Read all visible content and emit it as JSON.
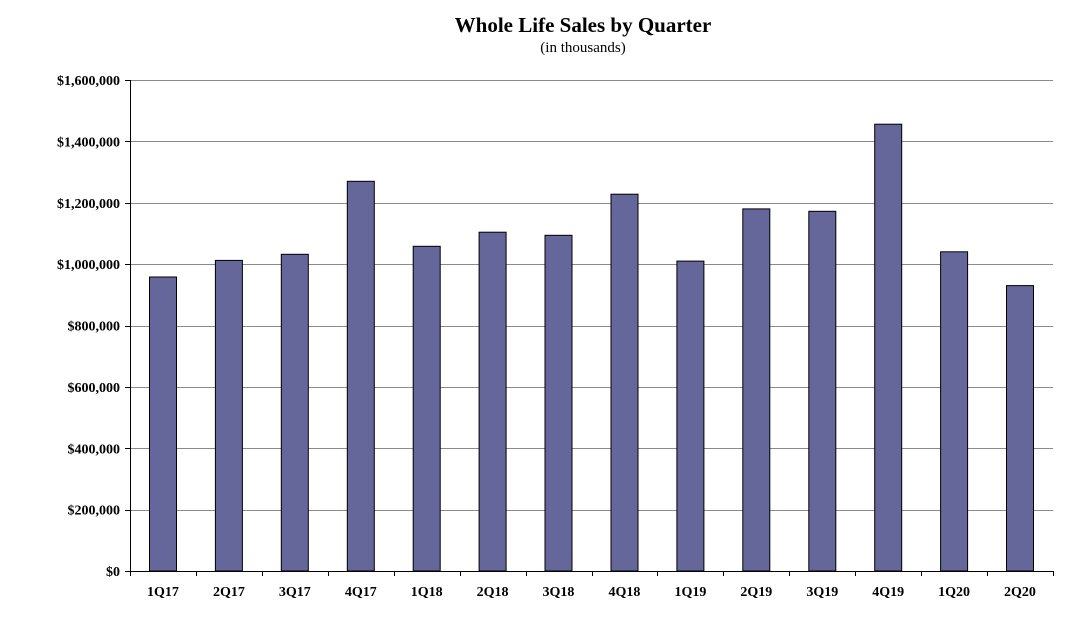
{
  "chart_data": {
    "type": "bar",
    "title": "Whole Life Sales by Quarter",
    "subtitle": "(in thousands)",
    "xlabel": "",
    "ylabel": "",
    "categories": [
      "1Q17",
      "2Q17",
      "3Q17",
      "4Q17",
      "1Q18",
      "2Q18",
      "3Q18",
      "4Q18",
      "1Q19",
      "2Q19",
      "3Q19",
      "4Q19",
      "1Q20",
      "2Q20"
    ],
    "values": [
      958000,
      1012000,
      1032000,
      1270000,
      1058000,
      1104000,
      1094000,
      1228000,
      1010000,
      1180000,
      1172000,
      1456000,
      1040000,
      930000
    ],
    "ylim": [
      0,
      1600000
    ],
    "yticks": [
      0,
      200000,
      400000,
      600000,
      800000,
      1000000,
      1200000,
      1400000,
      1600000
    ],
    "ytick_labels": [
      "$0",
      "$200,000",
      "$400,000",
      "$600,000",
      "$800,000",
      "$1,000,000",
      "$1,200,000",
      "$1,400,000",
      "$1,600,000"
    ],
    "grid": true,
    "legend": "none",
    "colors": {
      "bar": "#65669a",
      "bar_edge": "#000000",
      "grid": "#8a8a8a",
      "axis": "#000000"
    }
  }
}
